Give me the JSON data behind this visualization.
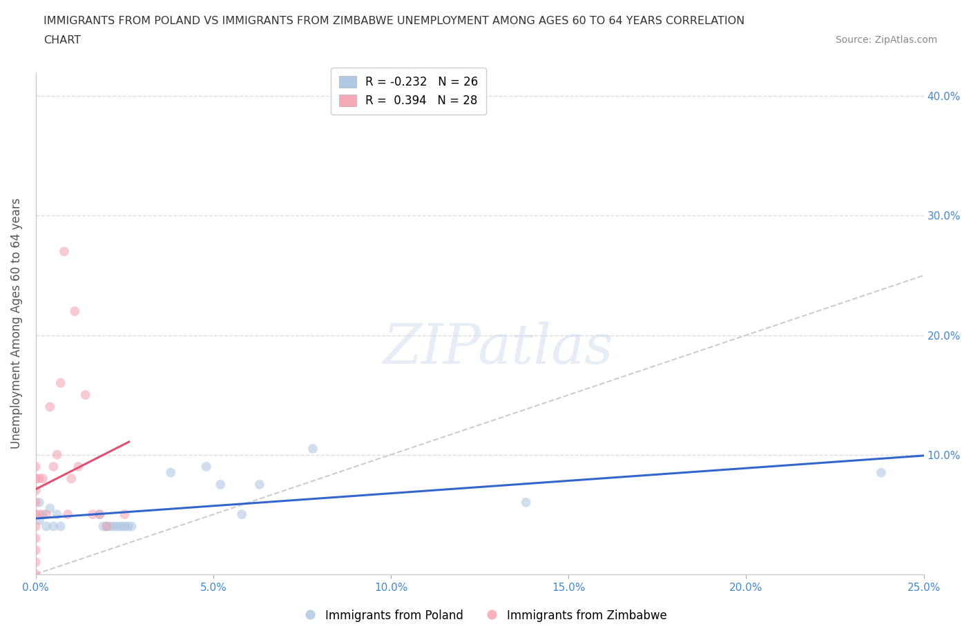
{
  "title_line1": "IMMIGRANTS FROM POLAND VS IMMIGRANTS FROM ZIMBABWE UNEMPLOYMENT AMONG AGES 60 TO 64 YEARS CORRELATION",
  "title_line2": "CHART",
  "source_text": "Source: ZipAtlas.com",
  "ylabel": "Unemployment Among Ages 60 to 64 years",
  "watermark": "ZIPatlas",
  "poland_x": [
    0.001,
    0.001,
    0.002,
    0.003,
    0.004,
    0.005,
    0.006,
    0.007,
    0.018,
    0.019,
    0.02,
    0.021,
    0.022,
    0.023,
    0.024,
    0.025,
    0.026,
    0.027,
    0.038,
    0.048,
    0.052,
    0.058,
    0.063,
    0.078,
    0.138,
    0.238
  ],
  "poland_y": [
    0.045,
    0.06,
    0.05,
    0.04,
    0.055,
    0.04,
    0.05,
    0.04,
    0.05,
    0.04,
    0.04,
    0.04,
    0.04,
    0.04,
    0.04,
    0.04,
    0.04,
    0.04,
    0.085,
    0.09,
    0.075,
    0.05,
    0.075,
    0.105,
    0.06,
    0.085
  ],
  "zimbabwe_x": [
    0.0,
    0.0,
    0.0,
    0.0,
    0.0,
    0.0,
    0.0,
    0.0,
    0.0,
    0.0,
    0.001,
    0.001,
    0.002,
    0.003,
    0.004,
    0.005,
    0.006,
    0.007,
    0.008,
    0.009,
    0.01,
    0.011,
    0.012,
    0.014,
    0.016,
    0.018,
    0.02,
    0.025
  ],
  "zimbabwe_y": [
    0.0,
    0.01,
    0.02,
    0.03,
    0.04,
    0.05,
    0.06,
    0.07,
    0.08,
    0.09,
    0.05,
    0.08,
    0.08,
    0.05,
    0.14,
    0.09,
    0.1,
    0.16,
    0.27,
    0.05,
    0.08,
    0.22,
    0.09,
    0.15,
    0.05,
    0.05,
    0.04,
    0.05
  ],
  "poland_color": "#aac4e0",
  "zimbabwe_color": "#f4a0b0",
  "poland_line_color": "#3366cc",
  "zimbabwe_line_color": "#e05070",
  "diagonal_color": "#cccccc",
  "R_poland": -0.232,
  "N_poland": 26,
  "R_zimbabwe": 0.394,
  "N_zimbabwe": 28,
  "xlim": [
    0.0,
    0.25
  ],
  "ylim": [
    0.0,
    0.42
  ],
  "xticks": [
    0.0,
    0.05,
    0.1,
    0.15,
    0.2,
    0.25
  ],
  "xtick_labels": [
    "0.0%",
    "5.0%",
    "10.0%",
    "15.0%",
    "20.0%",
    "25.0%"
  ],
  "yticks": [
    0.1,
    0.2,
    0.3,
    0.4
  ],
  "ytick_labels": [
    "10.0%",
    "20.0%",
    "30.0%",
    "40.0%"
  ],
  "right_yticks": [
    0.1,
    0.2,
    0.3,
    0.4
  ],
  "right_ytick_labels": [
    "10.0%",
    "20.0%",
    "30.0%",
    "40.0%"
  ],
  "grid_color": "#dddddd",
  "background_color": "#ffffff",
  "axis_color": "#4488cc",
  "tick_color": "#999999",
  "marker_size": 100,
  "marker_alpha": 0.55,
  "line_width": 2.2
}
